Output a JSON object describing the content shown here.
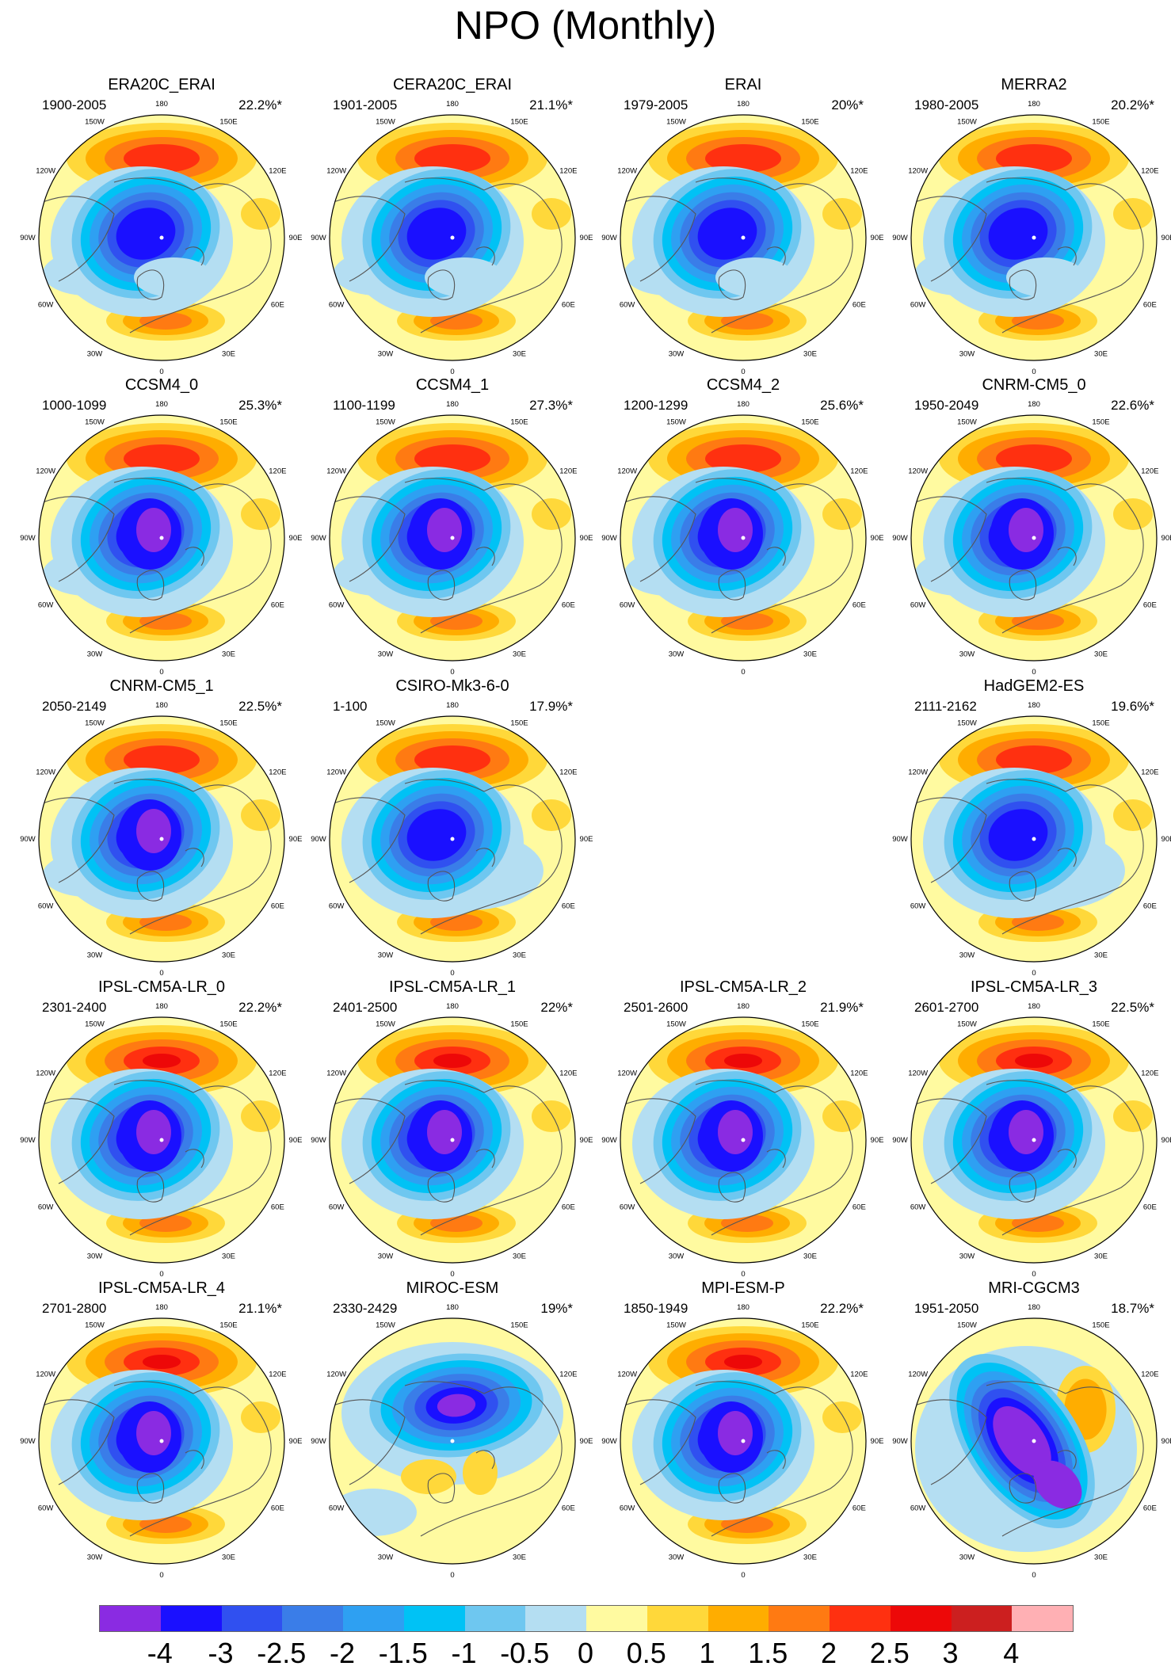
{
  "title": "NPO (Monthly)",
  "map_data": {
    "projection": "north-polar-stereographic",
    "longitude_labels": [
      "180",
      "150E",
      "120E",
      "90E",
      "60E",
      "30E",
      "0",
      "30W",
      "60W",
      "90W",
      "120W",
      "150W"
    ],
    "panels": [
      {
        "name": "ERA20C_ERAI",
        "period": "1900-2005",
        "variance": "22.2%*"
      },
      {
        "name": "CERA20C_ERAI",
        "period": "1901-2005",
        "variance": "21.1%*"
      },
      {
        "name": "ERAI",
        "period": "1979-2005",
        "variance": "20%*"
      },
      {
        "name": "MERRA2",
        "period": "1980-2005",
        "variance": "20.2%*"
      },
      {
        "name": "CCSM4_0",
        "period": "1000-1099",
        "variance": "25.3%*"
      },
      {
        "name": "CCSM4_1",
        "period": "1100-1199",
        "variance": "27.3%*"
      },
      {
        "name": "CCSM4_2",
        "period": "1200-1299",
        "variance": "25.6%*"
      },
      {
        "name": "CNRM-CM5_0",
        "period": "1950-2049",
        "variance": "22.6%*"
      },
      {
        "name": "CNRM-CM5_1",
        "period": "2050-2149",
        "variance": "22.5%*"
      },
      {
        "name": "CSIRO-Mk3-6-0",
        "period": "1-100",
        "variance": "17.9%*"
      },
      {
        "name": "HadGEM2-ES",
        "period": "2111-2162",
        "variance": "19.6%*"
      },
      {
        "name": "IPSL-CM5A-LR_0",
        "period": "2301-2400",
        "variance": "22.2%*"
      },
      {
        "name": "IPSL-CM5A-LR_1",
        "period": "2401-2500",
        "variance": "22%*"
      },
      {
        "name": "IPSL-CM5A-LR_2",
        "period": "2501-2600",
        "variance": "21.9%*"
      },
      {
        "name": "IPSL-CM5A-LR_3",
        "period": "2601-2700",
        "variance": "22.5%*"
      },
      {
        "name": "IPSL-CM5A-LR_4",
        "period": "2701-2800",
        "variance": "21.1%*"
      },
      {
        "name": "MIROC-ESM",
        "period": "2330-2429",
        "variance": "19%*"
      },
      {
        "name": "MPI-ESM-P",
        "period": "1850-1949",
        "variance": "22.2%*"
      },
      {
        "name": "MRI-CGCM3",
        "period": "1951-2050",
        "variance": "18.7%*"
      }
    ]
  },
  "colorbar": {
    "colors": [
      "#8a2be2",
      "#1a10ff",
      "#3050f0",
      "#3a7de8",
      "#2ea0f2",
      "#00c2f5",
      "#6ec7f0",
      "#b4def2",
      "#fffaa0",
      "#ffd83a",
      "#ffad00",
      "#ff7a12",
      "#ff3010",
      "#ed0808",
      "#cc1f1f",
      "#ffb0b4"
    ],
    "labels": [
      "-4",
      "-3",
      "-2.5",
      "-2",
      "-1.5",
      "-1",
      "-0.5",
      "0",
      "0.5",
      "1",
      "1.5",
      "2",
      "2.5",
      "3",
      "4"
    ]
  }
}
